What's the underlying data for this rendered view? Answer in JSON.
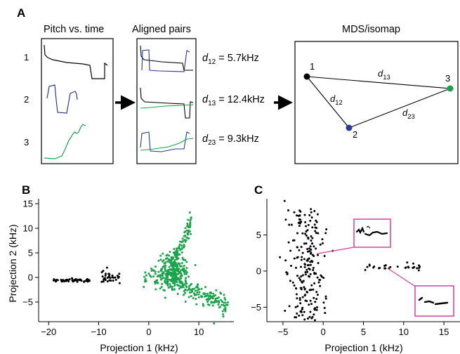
{
  "panel_a": {
    "label": "A",
    "titles": {
      "pitch": "Pitch vs. time",
      "aligned": "Aligned pairs",
      "mds": "MDS/isomap"
    },
    "row_numbers": [
      "1",
      "2",
      "3"
    ],
    "distances": [
      {
        "sym": "d",
        "sub": "12",
        "value": " = 5.7kHz"
      },
      {
        "sym": "d",
        "sub": "13",
        "value": " = 12.4kHz"
      },
      {
        "sym": "d",
        "sub": "23",
        "value": " = 9.3kHz"
      }
    ],
    "mds_nodes": [
      {
        "label": "1",
        "color": "#000000"
      },
      {
        "label": "2",
        "color": "#2b3a8f"
      },
      {
        "label": "3",
        "color": "#1aa34a"
      }
    ],
    "mds_edges": [
      {
        "sym": "d",
        "sub": "13"
      },
      {
        "sym": "d",
        "sub": "12"
      },
      {
        "sym": "d",
        "sub": "23"
      }
    ],
    "colors": {
      "black": "#000000",
      "blue": "#2b3a8f",
      "green": "#1aa34a"
    }
  },
  "panel_b": {
    "label": "B",
    "chart_data": {
      "type": "scatter",
      "xlabel": "Projection 1 (kHz)",
      "ylabel": "Projection 2 (kHz)",
      "xlim": [
        -22,
        17
      ],
      "ylim": [
        -9,
        16
      ],
      "xticks": [
        -20,
        -10,
        0,
        10
      ],
      "yticks": [
        15,
        10,
        5,
        0,
        -5
      ],
      "series": [
        {
          "color": "#000000",
          "clusters": [
            {
              "x_range": [
                -19,
                -11.5
              ],
              "y_mean": -0.6,
              "y_sd": 0.15,
              "n": 60
            },
            {
              "x_range": [
                -9.5,
                -5.8
              ],
              "y_mean": 0.0,
              "y_sd": 0.6,
              "n": 35
            }
          ]
        },
        {
          "color": "#1aa34a",
          "clusters": [
            {
              "x_range": [
                2,
                17
              ],
              "y_mean": 0.0,
              "y_sd": 2.5,
              "n": 520
            }
          ]
        }
      ]
    }
  },
  "panel_c": {
    "label": "C",
    "chart_data": {
      "type": "scatter",
      "xlabel": "Projection 1 (kHz)",
      "ylabel": "",
      "xlim": [
        -7,
        17
      ],
      "ylim": [
        -7,
        10
      ],
      "xticks": [
        -5,
        0,
        5,
        10,
        15
      ],
      "yticks": [
        5,
        0,
        -5
      ],
      "series": [
        {
          "color": "#000000",
          "clusters": [
            {
              "x_range": [
                -4.5,
                1.5
              ],
              "y_range": [
                -7,
                9.5
              ],
              "n": 210
            },
            {
              "x_range": [
                5,
                12
              ],
              "y_mean": 0.5,
              "y_sd": 0.2,
              "n": 28
            }
          ]
        }
      ],
      "insets": [
        {
          "name": "inset-top",
          "points_to": [
            -0.8,
            2.4
          ]
        },
        {
          "name": "inset-bottom",
          "points_to": [
            8.0,
            0.4
          ]
        }
      ],
      "inset_color": "#d63ea0"
    }
  }
}
